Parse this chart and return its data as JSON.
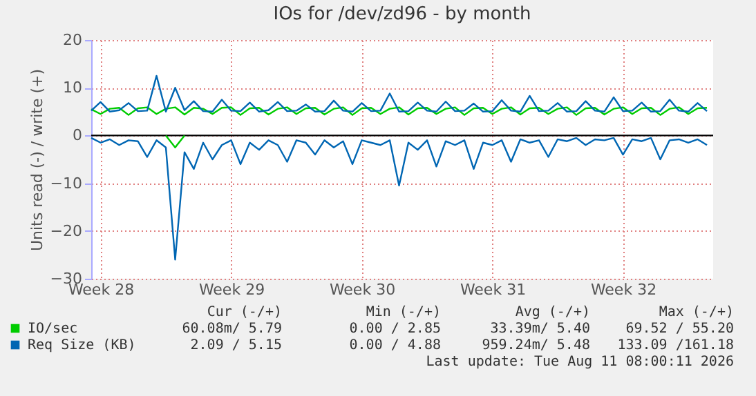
{
  "chart_data": {
    "type": "line",
    "title": "IOs for /dev/zd96 - by month",
    "ylabel": "Units read (-) / write (+)",
    "x": [
      "2026-07-09T00:00",
      "2026-07-09T12:00",
      "2026-07-10T00:00",
      "2026-07-10T12:00",
      "2026-07-11T00:00",
      "2026-07-11T12:00",
      "2026-07-12T00:00",
      "2026-07-12T12:00",
      "2026-07-13T00:00",
      "2026-07-13T12:00",
      "2026-07-14T00:00",
      "2026-07-14T12:00",
      "2026-07-15T00:00",
      "2026-07-15T12:00",
      "2026-07-16T00:00",
      "2026-07-16T12:00",
      "2026-07-17T00:00",
      "2026-07-17T12:00",
      "2026-07-18T00:00",
      "2026-07-18T12:00",
      "2026-07-19T00:00",
      "2026-07-19T12:00",
      "2026-07-20T00:00",
      "2026-07-20T12:00",
      "2026-07-21T00:00",
      "2026-07-21T12:00",
      "2026-07-22T00:00",
      "2026-07-22T12:00",
      "2026-07-23T00:00",
      "2026-07-23T12:00",
      "2026-07-24T00:00",
      "2026-07-24T12:00",
      "2026-07-25T00:00",
      "2026-07-25T12:00",
      "2026-07-26T00:00",
      "2026-07-26T12:00",
      "2026-07-27T00:00",
      "2026-07-27T12:00",
      "2026-07-28T00:00",
      "2026-07-28T12:00",
      "2026-07-29T00:00",
      "2026-07-29T12:00",
      "2026-07-30T00:00",
      "2026-07-30T12:00",
      "2026-07-31T00:00",
      "2026-07-31T12:00",
      "2026-08-01T00:00",
      "2026-08-01T12:00",
      "2026-08-02T00:00",
      "2026-08-02T12:00",
      "2026-08-03T00:00",
      "2026-08-03T12:00",
      "2026-08-04T00:00",
      "2026-08-04T12:00",
      "2026-08-05T00:00",
      "2026-08-05T12:00",
      "2026-08-06T00:00",
      "2026-08-06T12:00",
      "2026-08-07T00:00",
      "2026-08-07T12:00",
      "2026-08-08T00:00",
      "2026-08-08T12:00",
      "2026-08-09T00:00",
      "2026-08-09T12:00",
      "2026-08-10T00:00",
      "2026-08-10T12:00",
      "2026-08-11T00:00"
    ],
    "xlim": [
      "2026-07-09T00:00",
      "2026-08-11T08:00"
    ],
    "xticks": [
      {
        "value": "2026-07-09T12:00",
        "label": "Week 28"
      },
      {
        "value": "2026-07-16T12:00",
        "label": "Week 29"
      },
      {
        "value": "2026-07-23T12:00",
        "label": "Week 30"
      },
      {
        "value": "2026-07-30T12:00",
        "label": "Week 31"
      },
      {
        "value": "2026-08-06T12:00",
        "label": "Week 32"
      }
    ],
    "ylim": [
      -30,
      20
    ],
    "yticks": [
      -30,
      -20,
      -10,
      0,
      10,
      20
    ],
    "series": [
      {
        "name": "IO/sec",
        "color": "#00cc00",
        "values": [
          5.5,
          4.5,
          5.6,
          5.8,
          4.3,
          5.7,
          5.9,
          4.5,
          5.6,
          5.9,
          4.4,
          5.8,
          5.6,
          4.5,
          5.8,
          5.9,
          4.3,
          5.7,
          5.8,
          4.4,
          5.6,
          5.9,
          4.5,
          5.7,
          5.8,
          4.4,
          5.6,
          5.9,
          4.3,
          5.7,
          5.8,
          4.5,
          5.6,
          5.9,
          4.4,
          5.7,
          5.8,
          4.5,
          5.6,
          5.9,
          4.3,
          5.7,
          5.8,
          4.5,
          5.6,
          5.9,
          4.4,
          5.7,
          5.8,
          4.5,
          5.6,
          5.9,
          4.3,
          5.7,
          5.8,
          4.4,
          5.6,
          5.9,
          4.5,
          5.7,
          5.8,
          4.3,
          5.6,
          5.9,
          4.5,
          5.7,
          5.8
        ]
      },
      {
        "color": "#00cc00",
        "values": [
          null,
          null,
          null,
          null,
          null,
          null,
          null,
          null,
          0,
          -2.5,
          0,
          null,
          null,
          null,
          null,
          null,
          null,
          null,
          null,
          null,
          null,
          null,
          null,
          null,
          null,
          null,
          null,
          null,
          null,
          null,
          null,
          null,
          null,
          null,
          null,
          null,
          null,
          null,
          null,
          null,
          null,
          null,
          null,
          null,
          null,
          null,
          null,
          null,
          null,
          null,
          null,
          null,
          null,
          null,
          null,
          null,
          null,
          null,
          null,
          null,
          null,
          null,
          null,
          null,
          null,
          null,
          null
        ]
      },
      {
        "name": "Req Size (KB)",
        "color": "#0066b3",
        "values": [
          5.2,
          7.0,
          5.0,
          5.3,
          6.8,
          5.1,
          5.2,
          12.5,
          5.0,
          10.0,
          5.3,
          7.2,
          5.1,
          5.0,
          7.5,
          5.2,
          5.1,
          6.9,
          5.0,
          5.3,
          7.0,
          5.1,
          5.2,
          6.5,
          5.0,
          5.1,
          7.3,
          5.2,
          5.0,
          6.8,
          5.1,
          5.2,
          8.8,
          5.0,
          5.1,
          6.9,
          5.2,
          5.0,
          7.1,
          5.1,
          5.2,
          6.7,
          5.0,
          5.1,
          7.4,
          5.2,
          5.0,
          8.3,
          5.1,
          5.2,
          6.8,
          5.0,
          5.1,
          7.2,
          5.2,
          5.0,
          8.0,
          5.1,
          5.2,
          6.9,
          5.0,
          5.1,
          7.5,
          5.2,
          5.0,
          6.8,
          5.1
        ]
      },
      {
        "color": "#0066b3",
        "values": [
          -0.5,
          -1.5,
          -0.8,
          -2.0,
          -1.0,
          -1.2,
          -4.5,
          -1.0,
          -2.5,
          -26.0,
          -3.5,
          -7.0,
          -1.5,
          -5.0,
          -2.0,
          -1.0,
          -6.0,
          -1.5,
          -3.0,
          -1.0,
          -2.0,
          -5.5,
          -1.0,
          -1.5,
          -4.0,
          -1.0,
          -2.5,
          -1.2,
          -6.0,
          -1.0,
          -1.5,
          -2.0,
          -1.0,
          -10.5,
          -1.5,
          -3.0,
          -1.0,
          -6.5,
          -1.2,
          -2.0,
          -1.0,
          -7.0,
          -1.5,
          -2.0,
          -1.0,
          -5.5,
          -0.8,
          -1.5,
          -1.0,
          -4.5,
          -0.8,
          -1.2,
          -0.5,
          -2.0,
          -0.8,
          -1.0,
          -0.5,
          -4.0,
          -0.8,
          -1.2,
          -0.5,
          -5.0,
          -1.0,
          -0.8,
          -1.5,
          -0.8,
          -2.0
        ]
      }
    ],
    "ref_lines": [
      {
        "axis": "y",
        "value": 0,
        "color": "#000000"
      }
    ],
    "grid": true,
    "legend": "bottom left",
    "annotations": [
      "Cur (-/+)",
      "Min (-/+)",
      "Avg (-/+)",
      "Max (-/+)",
      "60.08m/  5.79",
      "0.00 /  2.85",
      "33.39m/  5.40",
      "69.52 / 55.20",
      "2.09 /  5.15",
      "0.00 /  4.88",
      "959.24m/  5.48",
      "133.09 /161.18",
      "Last update: Tue Aug 11 08:00:11 2026"
    ]
  }
}
